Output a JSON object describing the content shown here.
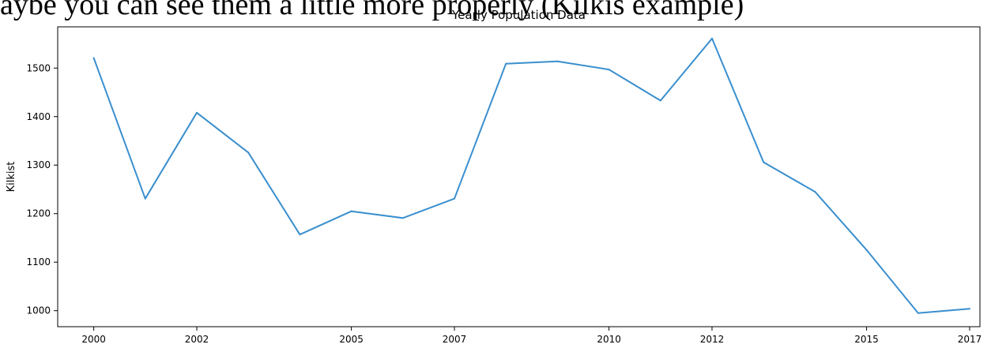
{
  "figure": {
    "caption_fragment": "aybe you can see them a little more properly (Kilkis example)"
  },
  "chart_data": {
    "type": "line",
    "title": "Yearly Population Data",
    "xlabel": "",
    "ylabel": "Kilkist",
    "xlim": [
      1999.3,
      2017.2
    ],
    "ylim": [
      967,
      1585
    ],
    "x_ticks": [
      2000,
      2002,
      2005,
      2007,
      2010,
      2012,
      2015,
      2017
    ],
    "y_ticks": [
      1000,
      1100,
      1200,
      1300,
      1400,
      1500
    ],
    "grid": false,
    "line_color": "#3a8fce",
    "series": [
      {
        "x": [
          "2000-01-01",
          "2001-01-01",
          "2002-01-01",
          "2003-01-01",
          "2004-01-01",
          "2005-01-01",
          "2006-01-01",
          "2007-01-01",
          "2008-01-01",
          "2009-01-01",
          "2010-01-01",
          "2011-01-01",
          "2012-01-01",
          "2013-01-01",
          "2014-01-01",
          "2015-01-01",
          "2016-01-01",
          "2017-01-01"
        ],
        "values": [
          1521,
          1231,
          1408,
          1326,
          1157,
          1205,
          1191,
          1231,
          1509,
          1514,
          1497,
          1433,
          1561,
          1306,
          1245,
          1125,
          995,
          1004
        ]
      }
    ]
  }
}
